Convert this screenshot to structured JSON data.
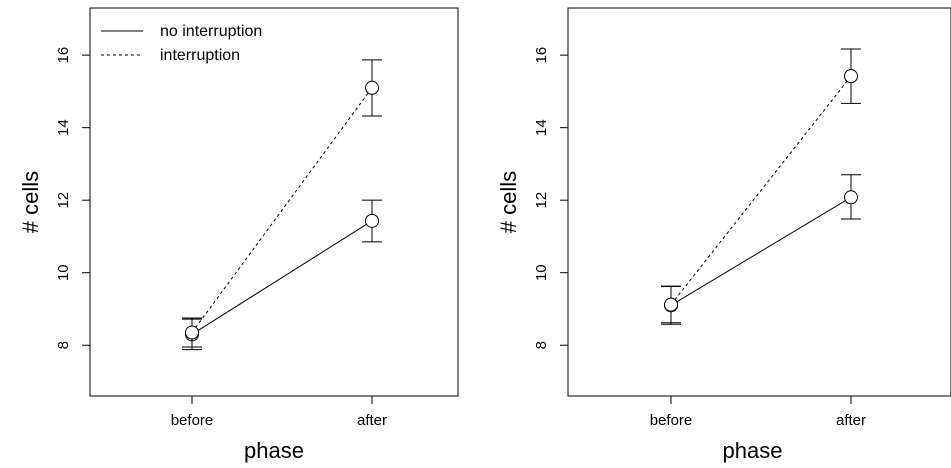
{
  "chart_data": [
    {
      "type": "line",
      "xlabel": "phase",
      "ylabel": "# cells",
      "categories": [
        "before",
        "after"
      ],
      "ylim": [
        6.6,
        17.3
      ],
      "yticks": [
        8,
        10,
        12,
        14,
        16
      ],
      "grid": false,
      "legend_position": "top-left",
      "series": [
        {
          "name": "no interruption",
          "line_style": "solid",
          "values": [
            8.3,
            11.43
          ],
          "error_low": [
            7.88,
            10.85
          ],
          "error_high": [
            8.72,
            12.0
          ]
        },
        {
          "name": "interruption",
          "line_style": "dashed",
          "values": [
            8.35,
            15.1
          ],
          "error_low": [
            7.95,
            14.32
          ],
          "error_high": [
            8.75,
            15.87
          ]
        }
      ]
    },
    {
      "type": "line",
      "xlabel": "phase",
      "ylabel": "# cells",
      "categories": [
        "before",
        "after"
      ],
      "ylim": [
        6.6,
        17.3
      ],
      "yticks": [
        8,
        10,
        12,
        14,
        16
      ],
      "grid": false,
      "series": [
        {
          "line_style": "solid",
          "values": [
            9.1,
            12.08
          ],
          "error_low": [
            8.58,
            11.48
          ],
          "error_high": [
            9.62,
            12.7
          ]
        },
        {
          "line_style": "dashed",
          "values": [
            9.12,
            15.42
          ],
          "error_low": [
            8.62,
            14.67
          ],
          "error_high": [
            9.63,
            16.17
          ]
        }
      ]
    }
  ],
  "colors": {
    "ink": "#000000",
    "background": "#ffffff"
  }
}
